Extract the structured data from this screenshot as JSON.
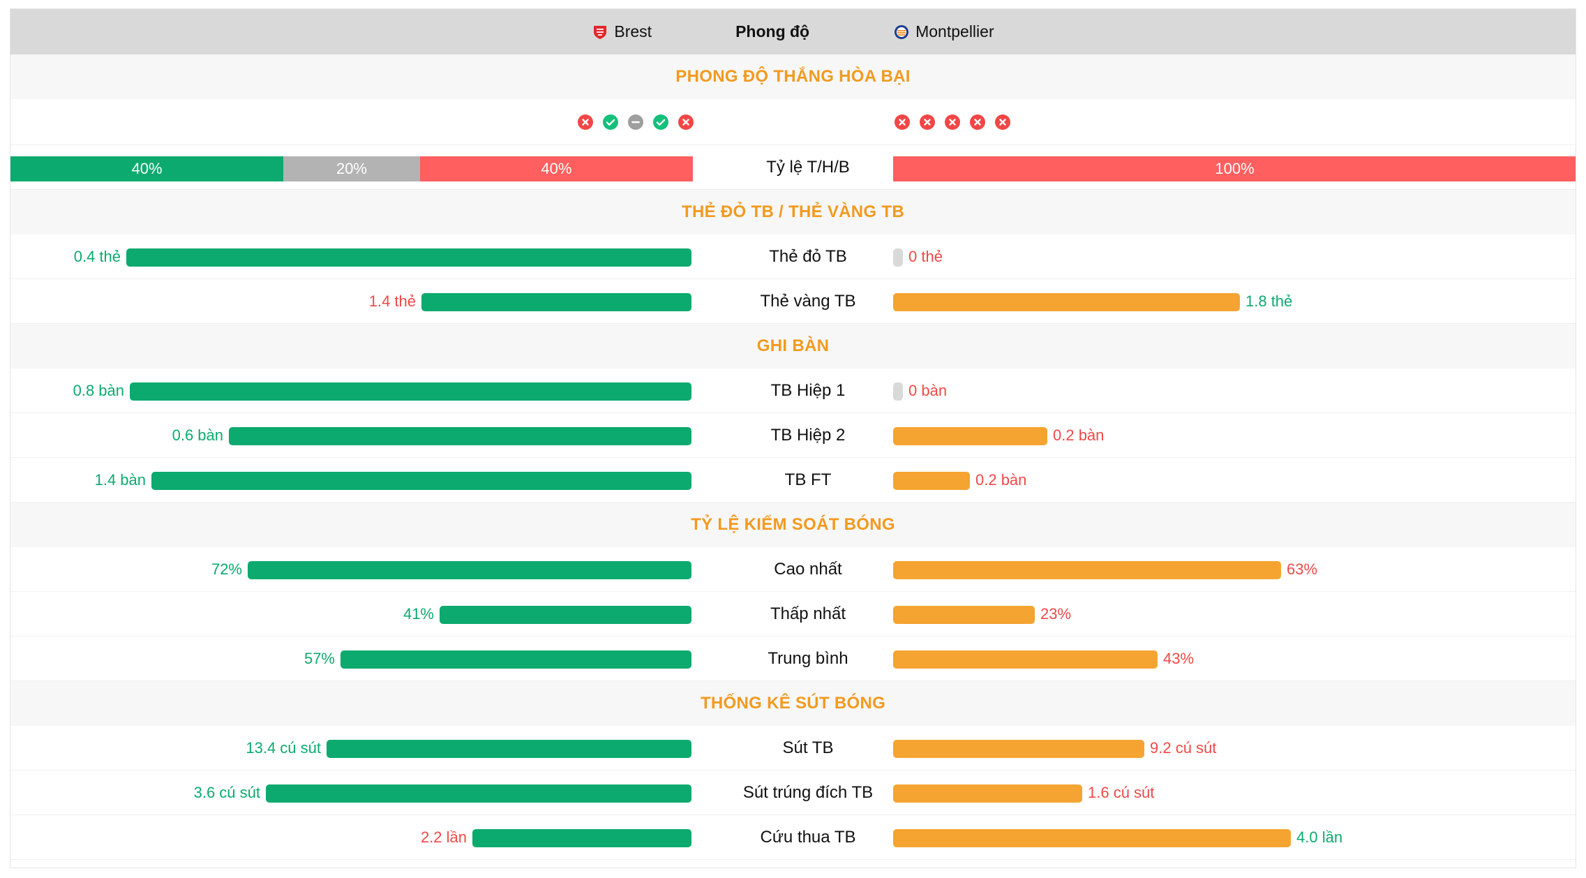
{
  "header": {
    "home_team": "Brest",
    "center_title": "Phong độ",
    "away_team": "Montpellier"
  },
  "colors": {
    "green": "#0caa6e",
    "orange": "#f5a431",
    "red": "#ff5f5f",
    "gray": "#b3b3b3",
    "section_title": "#f29a1f"
  },
  "form_section": {
    "title": "PHONG ĐỘ THẮNG HÒA BẠI",
    "home_results": [
      "loss",
      "win",
      "draw",
      "win",
      "loss"
    ],
    "away_results": [
      "loss",
      "loss",
      "loss",
      "loss",
      "loss"
    ],
    "ratio_label": "Tỷ lệ T/H/B",
    "home_ratio": {
      "win": "40%",
      "draw": "20%",
      "loss": "40%",
      "win_frac": 0.4,
      "draw_frac": 0.2,
      "loss_frac": 0.4
    },
    "away_ratio": {
      "win": "",
      "draw": "",
      "loss": "100%",
      "win_frac": 0,
      "draw_frac": 0,
      "loss_frac": 1.0
    }
  },
  "sections": [
    {
      "title": "THẺ ĐỎ TB / THẺ VÀNG TB",
      "rows": [
        {
          "label": "Thẻ đỏ TB",
          "home_text": "0.4 thẻ",
          "home_frac": 0.91,
          "home_color": "green",
          "away_text": "0 thẻ",
          "away_frac": 0,
          "away_color": "red"
        },
        {
          "label": "Thẻ vàng TB",
          "home_text": "1.4 thẻ",
          "home_frac": 0.435,
          "home_color": "red",
          "away_text": "1.8 thẻ",
          "away_frac": 0.558,
          "away_color": "green"
        }
      ]
    },
    {
      "title": "GHI BÀN",
      "rows": [
        {
          "label": "TB Hiệp 1",
          "home_text": "0.8 bàn",
          "home_frac": 0.905,
          "home_color": "green",
          "away_text": "0 bàn",
          "away_frac": 0,
          "away_color": "red"
        },
        {
          "label": "TB Hiệp 2",
          "home_text": "0.6 bàn",
          "home_frac": 0.745,
          "home_color": "green",
          "away_text": "0.2 bàn",
          "away_frac": 0.248,
          "away_color": "red"
        },
        {
          "label": "TB FT",
          "home_text": "1.4 bàn",
          "home_frac": 0.87,
          "home_color": "green",
          "away_text": "0.2 bàn",
          "away_frac": 0.124,
          "away_color": "red"
        }
      ]
    },
    {
      "title": "TỶ LỆ KIỂM SOÁT BÓNG",
      "rows": [
        {
          "label": "Cao nhất",
          "home_text": "72%",
          "home_frac": 0.715,
          "home_color": "green",
          "away_text": "63%",
          "away_frac": 0.625,
          "away_color": "red"
        },
        {
          "label": "Thấp nhất",
          "home_text": "41%",
          "home_frac": 0.406,
          "home_color": "green",
          "away_text": "23%",
          "away_frac": 0.228,
          "away_color": "red"
        },
        {
          "label": "Trung bình",
          "home_text": "57%",
          "home_frac": 0.565,
          "home_color": "green",
          "away_text": "43%",
          "away_frac": 0.426,
          "away_color": "red"
        }
      ]
    },
    {
      "title": "THỐNG KÊ SÚT BÓNG",
      "rows": [
        {
          "label": "Sút TB",
          "home_text": "13.4 cú sút",
          "home_frac": 0.588,
          "home_color": "green",
          "away_text": "9.2 cú sút",
          "away_frac": 0.404,
          "away_color": "red"
        },
        {
          "label": "Sút trúng đích TB",
          "home_text": "3.6 cú sút",
          "home_frac": 0.685,
          "home_color": "green",
          "away_text": "1.6 cú sút",
          "away_frac": 0.305,
          "away_color": "red"
        },
        {
          "label": "Cứu thua TB",
          "home_text": "2.2 lần",
          "home_frac": 0.353,
          "home_color": "red",
          "away_text": "4.0 lần",
          "away_frac": 0.64,
          "away_color": "green"
        }
      ]
    }
  ]
}
